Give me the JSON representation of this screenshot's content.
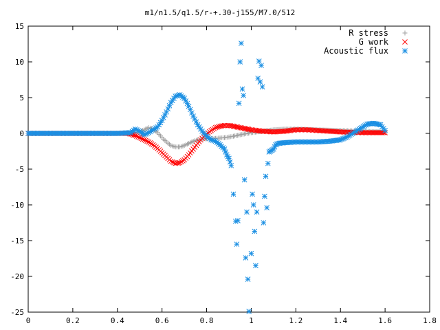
{
  "chart_data": {
    "type": "scatter",
    "title": "m1/n1.5/q1.5/r-+.30-j155/M7.0/512",
    "xlabel": "",
    "ylabel": "",
    "xlim": [
      0,
      1.8
    ],
    "ylim": [
      -25,
      15
    ],
    "x_ticks": [
      "0",
      "0.2",
      "0.4",
      "0.6",
      "0.8",
      "1",
      "1.2",
      "1.4",
      "1.6",
      "1.8"
    ],
    "y_ticks": [
      "15",
      "10",
      "5",
      "0",
      "-5",
      "-10",
      "-15",
      "-20",
      "-25"
    ],
    "grid": false,
    "legend_position": "top-right",
    "series": [
      {
        "name": "R stress",
        "marker": "+",
        "color": "#a0a0a0",
        "points": [
          [
            0,
            0
          ],
          [
            0.1,
            0
          ],
          [
            0.2,
            0
          ],
          [
            0.3,
            0
          ],
          [
            0.4,
            0
          ],
          [
            0.45,
            0
          ],
          [
            0.48,
            0.1
          ],
          [
            0.5,
            0.2
          ],
          [
            0.52,
            0.5
          ],
          [
            0.54,
            0.8
          ],
          [
            0.56,
            0.6
          ],
          [
            0.58,
            0.1
          ],
          [
            0.6,
            -0.6
          ],
          [
            0.62,
            -1.2
          ],
          [
            0.64,
            -1.7
          ],
          [
            0.66,
            -1.9
          ],
          [
            0.68,
            -1.9
          ],
          [
            0.7,
            -1.7
          ],
          [
            0.72,
            -1.4
          ],
          [
            0.74,
            -1.1
          ],
          [
            0.76,
            -0.9
          ],
          [
            0.78,
            -0.8
          ],
          [
            0.8,
            -0.75
          ],
          [
            0.82,
            -0.75
          ],
          [
            0.84,
            -0.7
          ],
          [
            0.86,
            -0.65
          ],
          [
            0.88,
            -0.6
          ],
          [
            0.9,
            -0.5
          ],
          [
            0.92,
            -0.4
          ],
          [
            0.95,
            -0.2
          ],
          [
            1.0,
            0.1
          ],
          [
            1.05,
            0.3
          ],
          [
            1.1,
            0.5
          ],
          [
            1.15,
            0.6
          ],
          [
            1.2,
            0.6
          ],
          [
            1.25,
            0.55
          ],
          [
            1.3,
            0.5
          ],
          [
            1.35,
            0.45
          ],
          [
            1.4,
            0.4
          ],
          [
            1.45,
            0.35
          ],
          [
            1.5,
            0.3
          ],
          [
            1.55,
            0.25
          ],
          [
            1.6,
            0.2
          ]
        ]
      },
      {
        "name": "G work",
        "marker": "x",
        "color": "#ff0000",
        "points": [
          [
            0,
            0
          ],
          [
            0.1,
            0
          ],
          [
            0.2,
            0
          ],
          [
            0.3,
            0
          ],
          [
            0.4,
            0
          ],
          [
            0.45,
            0
          ],
          [
            0.48,
            -0.3
          ],
          [
            0.5,
            -0.6
          ],
          [
            0.52,
            -0.9
          ],
          [
            0.54,
            -1.2
          ],
          [
            0.56,
            -1.6
          ],
          [
            0.58,
            -2.1
          ],
          [
            0.6,
            -2.7
          ],
          [
            0.62,
            -3.3
          ],
          [
            0.64,
            -3.9
          ],
          [
            0.66,
            -4.2
          ],
          [
            0.68,
            -4.1
          ],
          [
            0.7,
            -3.7
          ],
          [
            0.72,
            -3.0
          ],
          [
            0.74,
            -2.2
          ],
          [
            0.76,
            -1.4
          ],
          [
            0.78,
            -0.7
          ],
          [
            0.8,
            -0.1
          ],
          [
            0.82,
            0.4
          ],
          [
            0.84,
            0.8
          ],
          [
            0.86,
            1.0
          ],
          [
            0.88,
            1.1
          ],
          [
            0.9,
            1.1
          ],
          [
            0.92,
            1.0
          ],
          [
            0.95,
            0.8
          ],
          [
            1.0,
            0.5
          ],
          [
            1.05,
            0.3
          ],
          [
            1.1,
            0.2
          ],
          [
            1.15,
            0.3
          ],
          [
            1.2,
            0.5
          ],
          [
            1.25,
            0.5
          ],
          [
            1.3,
            0.4
          ],
          [
            1.35,
            0.3
          ],
          [
            1.4,
            0.2
          ],
          [
            1.45,
            0.15
          ],
          [
            1.5,
            0.1
          ],
          [
            1.55,
            0.1
          ],
          [
            1.6,
            0.1
          ]
        ]
      },
      {
        "name": "Acoustic flux",
        "marker": "*",
        "color": "#1a8fe3",
        "points": [
          [
            0,
            0
          ],
          [
            0.1,
            0
          ],
          [
            0.2,
            0
          ],
          [
            0.3,
            0
          ],
          [
            0.4,
            0
          ],
          [
            0.46,
            0.1
          ],
          [
            0.48,
            0.6
          ],
          [
            0.5,
            0.3
          ],
          [
            0.52,
            -0.2
          ],
          [
            0.54,
            0.1
          ],
          [
            0.56,
            0.5
          ],
          [
            0.58,
            0.9
          ],
          [
            0.6,
            1.8
          ],
          [
            0.62,
            3.0
          ],
          [
            0.64,
            4.3
          ],
          [
            0.66,
            5.2
          ],
          [
            0.68,
            5.4
          ],
          [
            0.7,
            4.9
          ],
          [
            0.72,
            3.8
          ],
          [
            0.74,
            2.4
          ],
          [
            0.76,
            1.2
          ],
          [
            0.78,
            0.3
          ],
          [
            0.8,
            -0.4
          ],
          [
            0.82,
            -0.9
          ],
          [
            0.84,
            -1.1
          ],
          [
            0.86,
            -1.6
          ],
          [
            0.88,
            -2.2
          ],
          [
            0.89,
            -3.0
          ],
          [
            0.9,
            -3.5
          ],
          [
            0.91,
            -4.5
          ],
          [
            0.92,
            -8.5
          ],
          [
            0.93,
            -12.3
          ],
          [
            0.935,
            -15.5
          ],
          [
            0.94,
            -12.2
          ],
          [
            0.945,
            4.2
          ],
          [
            0.95,
            10.0
          ],
          [
            0.955,
            12.6
          ],
          [
            0.96,
            6.2
          ],
          [
            0.965,
            5.3
          ],
          [
            0.97,
            -6.5
          ],
          [
            0.975,
            -17.4
          ],
          [
            0.98,
            -11.0
          ],
          [
            0.985,
            -20.4
          ],
          [
            0.99,
            -24.9
          ],
          [
            1.0,
            -16.8
          ],
          [
            1.005,
            -8.5
          ],
          [
            1.01,
            -10.0
          ],
          [
            1.015,
            -13.7
          ],
          [
            1.02,
            -18.5
          ],
          [
            1.025,
            -11.0
          ],
          [
            1.03,
            7.7
          ],
          [
            1.035,
            10.1
          ],
          [
            1.04,
            7.2
          ],
          [
            1.045,
            9.5
          ],
          [
            1.05,
            6.5
          ],
          [
            1.055,
            -12.5
          ],
          [
            1.06,
            -8.8
          ],
          [
            1.065,
            -6.0
          ],
          [
            1.07,
            -10.4
          ],
          [
            1.075,
            -4.2
          ],
          [
            1.08,
            -2.6
          ],
          [
            1.09,
            -2.4
          ],
          [
            1.1,
            -2.2
          ],
          [
            1.11,
            -1.6
          ],
          [
            1.12,
            -1.4
          ],
          [
            1.15,
            -1.3
          ],
          [
            1.2,
            -1.2
          ],
          [
            1.25,
            -1.2
          ],
          [
            1.3,
            -1.2
          ],
          [
            1.35,
            -1.1
          ],
          [
            1.4,
            -0.9
          ],
          [
            1.43,
            -0.5
          ],
          [
            1.46,
            0.1
          ],
          [
            1.49,
            0.7
          ],
          [
            1.52,
            1.3
          ],
          [
            1.55,
            1.4
          ],
          [
            1.58,
            1.2
          ],
          [
            1.6,
            0.4
          ]
        ]
      }
    ]
  }
}
